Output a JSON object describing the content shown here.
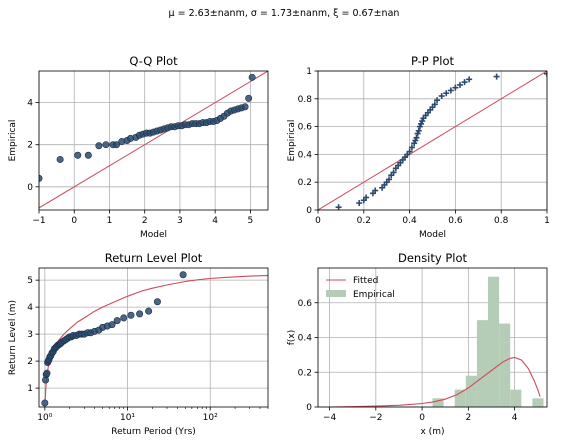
{
  "figure": {
    "suptitle": "μ = 2.63±nanm, σ = 1.73±nanm, ξ = 0.67±nan"
  },
  "colors": {
    "points": "#2c4a6e",
    "line": "#d1495b",
    "hist": "#b5cdb7",
    "grid": "#b0b0b0"
  },
  "chart_data": [
    {
      "type": "scatter",
      "title": "Q-Q Plot",
      "xlabel": "Model",
      "ylabel": "Empirical",
      "xlim": [
        -1,
        5.5
      ],
      "ylim": [
        -1.1,
        5.5
      ],
      "xticks": [
        -1,
        0,
        1,
        2,
        3,
        4,
        5
      ],
      "yticks": [
        0,
        2,
        4
      ],
      "grid": true,
      "reference_line": [
        [
          -1,
          -1
        ],
        [
          5.5,
          5.5
        ]
      ],
      "x": [
        -1.0,
        -0.4,
        0.1,
        0.4,
        0.7,
        0.9,
        1.1,
        1.2,
        1.35,
        1.5,
        1.6,
        1.75,
        1.85,
        1.95,
        2.05,
        2.15,
        2.25,
        2.35,
        2.45,
        2.55,
        2.65,
        2.75,
        2.85,
        2.95,
        3.05,
        3.15,
        3.25,
        3.35,
        3.45,
        3.55,
        3.65,
        3.75,
        3.85,
        3.95,
        4.05,
        4.15,
        4.25,
        4.35,
        4.45,
        4.55,
        4.65,
        4.75,
        4.85,
        4.95,
        5.05
      ],
      "y": [
        0.4,
        1.3,
        1.5,
        1.5,
        1.95,
        2.0,
        2.0,
        2.0,
        2.15,
        2.2,
        2.3,
        2.35,
        2.45,
        2.5,
        2.55,
        2.55,
        2.6,
        2.65,
        2.7,
        2.75,
        2.8,
        2.85,
        2.85,
        2.9,
        2.9,
        2.95,
        2.95,
        3.0,
        3.0,
        3.0,
        3.05,
        3.05,
        3.1,
        3.1,
        3.15,
        3.25,
        3.35,
        3.5,
        3.6,
        3.65,
        3.7,
        3.75,
        3.8,
        4.2,
        5.2
      ]
    },
    {
      "type": "scatter",
      "title": "P-P Plot",
      "xlabel": "Model",
      "ylabel": "Empirical",
      "xlim": [
        0,
        1
      ],
      "ylim": [
        0,
        1
      ],
      "xticks": [
        0.0,
        0.2,
        0.4,
        0.6,
        0.8,
        1.0
      ],
      "yticks": [
        0.0,
        0.2,
        0.4,
        0.6,
        0.8,
        1.0
      ],
      "grid": true,
      "marker": "+",
      "reference_line": [
        [
          0,
          0
        ],
        [
          1,
          1
        ]
      ],
      "x": [
        0.09,
        0.18,
        0.2,
        0.21,
        0.24,
        0.25,
        0.28,
        0.29,
        0.3,
        0.31,
        0.32,
        0.33,
        0.34,
        0.35,
        0.36,
        0.37,
        0.38,
        0.39,
        0.4,
        0.41,
        0.42,
        0.425,
        0.43,
        0.435,
        0.44,
        0.445,
        0.45,
        0.455,
        0.46,
        0.47,
        0.48,
        0.49,
        0.5,
        0.51,
        0.52,
        0.54,
        0.56,
        0.58,
        0.6,
        0.62,
        0.64,
        0.66,
        0.78,
        1.0
      ],
      "y": [
        0.02,
        0.05,
        0.07,
        0.09,
        0.12,
        0.14,
        0.16,
        0.18,
        0.2,
        0.22,
        0.25,
        0.27,
        0.3,
        0.32,
        0.34,
        0.36,
        0.38,
        0.4,
        0.42,
        0.45,
        0.48,
        0.5,
        0.52,
        0.55,
        0.57,
        0.6,
        0.62,
        0.64,
        0.66,
        0.68,
        0.7,
        0.72,
        0.74,
        0.76,
        0.79,
        0.82,
        0.84,
        0.86,
        0.88,
        0.9,
        0.92,
        0.94,
        0.96,
        0.98
      ]
    },
    {
      "type": "scatter",
      "title": "Return Level Plot",
      "xlabel": "Return Period (Yrs)",
      "ylabel": "Return Level  (m)",
      "xscale": "log",
      "xlim": [
        0.85,
        500
      ],
      "ylim": [
        0.3,
        5.45
      ],
      "xticks": [
        1,
        10,
        100
      ],
      "xtick_labels": [
        "10⁰",
        "10¹",
        "10²"
      ],
      "yticks": [
        1,
        2,
        3,
        4,
        5
      ],
      "grid": true,
      "fit_curve": {
        "x": [
          1.01,
          1.03,
          1.06,
          1.1,
          1.15,
          1.22,
          1.3,
          1.45,
          1.7,
          2.0,
          2.5,
          3.0,
          4.0,
          5.0,
          7.0,
          10.0,
          15.0,
          20.0,
          30.0,
          50.0,
          75.0,
          100.0,
          150.0,
          200.0,
          300.0,
          500.0
        ],
        "y": [
          0.55,
          1.05,
          1.45,
          1.8,
          2.05,
          2.3,
          2.5,
          2.75,
          3.0,
          3.2,
          3.45,
          3.6,
          3.85,
          4.0,
          4.2,
          4.4,
          4.6,
          4.7,
          4.82,
          4.95,
          5.02,
          5.06,
          5.1,
          5.12,
          5.15,
          5.17
        ]
      },
      "x": [
        1.0,
        1.02,
        1.04,
        1.06,
        1.08,
        1.1,
        1.12,
        1.15,
        1.18,
        1.22,
        1.26,
        1.3,
        1.35,
        1.4,
        1.45,
        1.5,
        1.55,
        1.6,
        1.7,
        1.8,
        1.9,
        2.0,
        2.1,
        2.2,
        2.4,
        2.6,
        2.8,
        3.0,
        3.3,
        3.6,
        4.0,
        4.5,
        5.0,
        5.7,
        6.5,
        7.5,
        9.0,
        11.0,
        14.0,
        18.0,
        23.0,
        47.0
      ],
      "y": [
        0.45,
        1.3,
        1.5,
        1.55,
        1.95,
        2.0,
        2.05,
        2.15,
        2.2,
        2.3,
        2.35,
        2.45,
        2.5,
        2.55,
        2.6,
        2.62,
        2.65,
        2.7,
        2.75,
        2.8,
        2.85,
        2.9,
        2.9,
        2.95,
        2.95,
        3.0,
        3.0,
        3.0,
        3.05,
        3.05,
        3.1,
        3.15,
        3.25,
        3.3,
        3.35,
        3.5,
        3.6,
        3.7,
        3.75,
        3.85,
        4.2,
        5.2
      ]
    },
    {
      "type": "bar",
      "title": "Density Plot",
      "xlabel": "x  (m)",
      "ylabel": "f(x)",
      "xlim": [
        -4.5,
        5.4
      ],
      "ylim": [
        0,
        0.8
      ],
      "xticks": [
        -4,
        -2,
        0,
        2,
        4
      ],
      "yticks": [
        0.0,
        0.2,
        0.4,
        0.6
      ],
      "grid": true,
      "legend": {
        "placement": "top-left",
        "entries": [
          "Fitted",
          "Empirical"
        ]
      },
      "bin_edges": [
        0.45,
        0.93,
        1.41,
        1.89,
        2.37,
        2.85,
        3.33,
        3.81,
        4.29,
        4.77,
        5.25
      ],
      "values": [
        0.05,
        0.0,
        0.1,
        0.18,
        0.5,
        0.75,
        0.48,
        0.1,
        0.0,
        0.05
      ],
      "fit_curve": {
        "x": [
          -4.0,
          -3.0,
          -2.0,
          -1.0,
          0.0,
          0.5,
          1.0,
          1.5,
          2.0,
          2.5,
          3.0,
          3.5,
          3.8,
          4.0,
          4.3,
          4.6,
          4.85,
          5.0,
          5.1
        ],
        "y": [
          0.0,
          0.002,
          0.005,
          0.01,
          0.02,
          0.03,
          0.045,
          0.07,
          0.11,
          0.16,
          0.21,
          0.26,
          0.28,
          0.285,
          0.27,
          0.22,
          0.15,
          0.1,
          0.06
        ]
      }
    }
  ]
}
